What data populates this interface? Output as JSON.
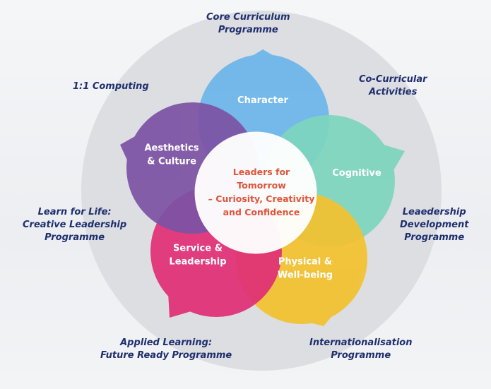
{
  "petals": [
    {
      "key": "character",
      "lines": [
        "Character"
      ],
      "color": "#6cb6ea"
    },
    {
      "key": "cognitive",
      "lines": [
        "Cognitive"
      ],
      "color": "#7ed5bd"
    },
    {
      "key": "physical",
      "lines": [
        "Physical &",
        "Well-being"
      ],
      "color": "#f2c22f"
    },
    {
      "key": "service",
      "lines": [
        "Service &",
        "Leadership"
      ],
      "color": "#e02f76"
    },
    {
      "key": "aesthetics",
      "lines": [
        "Aesthetics",
        "& Culture"
      ],
      "color": "#7d53a5"
    }
  ],
  "center": {
    "lines": [
      "Leaders for",
      "Tomorrow",
      "– Curiosity, Creativity",
      "and Confidence"
    ],
    "color": "#e0543a"
  },
  "programmes": {
    "core": [
      "Core Curriculum",
      "Programme"
    ],
    "computing": [
      "1:1 Computing"
    ],
    "cocurricular": [
      "Co-Curricular",
      "Activities"
    ],
    "learn_for_life": [
      "Learn for Life:",
      "Creative Leadership",
      "Programme"
    ],
    "leadership_dev": [
      "Leaedership",
      "Development",
      "Programme"
    ],
    "applied": [
      "Applied Learning:",
      "Future Ready Programme"
    ],
    "international": [
      "Internationalisation",
      "Programme"
    ]
  },
  "colors": {
    "outer_ring": "#dcdee2",
    "label_text": "#1f2f6e"
  }
}
